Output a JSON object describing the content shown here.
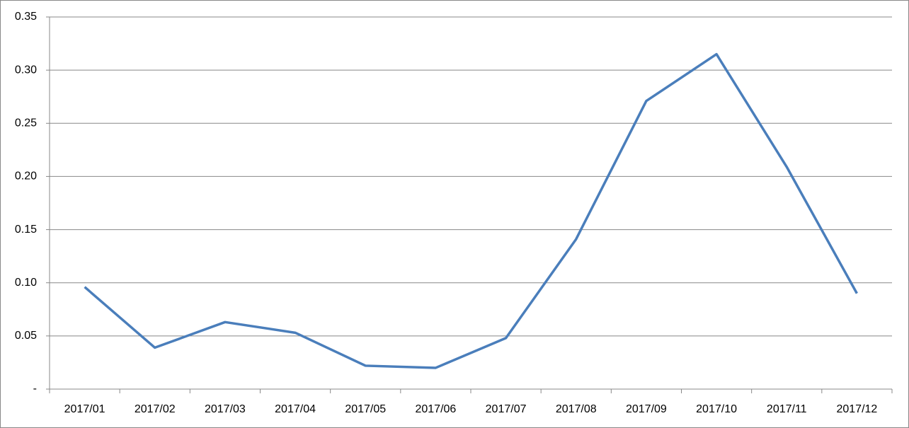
{
  "chart_data": {
    "type": "line",
    "categories": [
      "2017/01",
      "2017/02",
      "2017/03",
      "2017/04",
      "2017/05",
      "2017/06",
      "2017/07",
      "2017/08",
      "2017/09",
      "2017/10",
      "2017/11",
      "2017/12"
    ],
    "values": [
      0.096,
      0.039,
      0.063,
      0.053,
      0.022,
      0.02,
      0.048,
      0.141,
      0.271,
      0.315,
      0.209,
      0.09
    ],
    "color": "#4a7ebb",
    "ylim": [
      0,
      0.35
    ],
    "yticks": [
      {
        "value": 0,
        "label": "-"
      },
      0.05,
      {
        "value": 0.1,
        "label": "0.10"
      },
      0.15,
      {
        "value": 0.2,
        "label": "0.20"
      },
      0.25,
      {
        "value": 0.3,
        "label": "0.30"
      },
      0.35
    ],
    "grid": true
  }
}
